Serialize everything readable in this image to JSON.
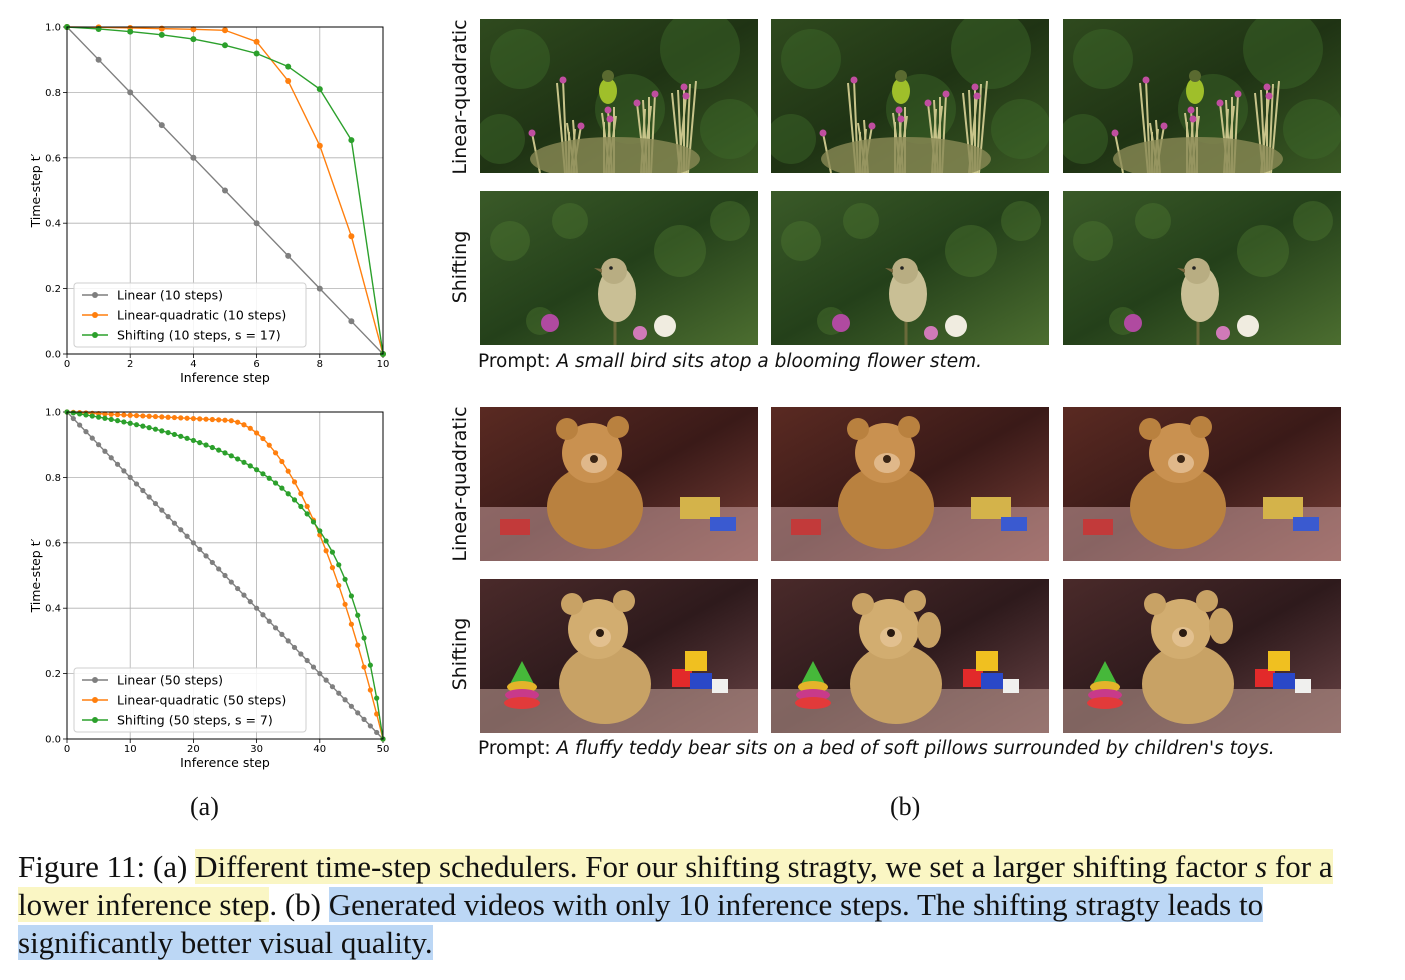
{
  "panel_a_label": "(a)",
  "panel_b_label": "(b)",
  "chart_data": [
    {
      "type": "line",
      "xlabel": "Inference step",
      "ylabel": "Time-step t′",
      "xlim": [
        0,
        10
      ],
      "ylim": [
        0,
        1
      ],
      "xticks": [
        "0",
        "2",
        "4",
        "6",
        "8",
        "10"
      ],
      "yticks": [
        "0.0",
        "0.2",
        "0.4",
        "0.6",
        "0.8",
        "1.0"
      ],
      "grid": true,
      "legend_position": "lower-left",
      "series": [
        {
          "name": "Linear (10 steps)",
          "color": "#7f7f7f",
          "x": [
            0,
            1,
            2,
            3,
            4,
            5,
            6,
            7,
            8,
            9,
            10
          ],
          "y": [
            1.0,
            0.9,
            0.8,
            0.7,
            0.6,
            0.5,
            0.4,
            0.3,
            0.2,
            0.1,
            0.0
          ]
        },
        {
          "name": "Linear-quadratic (10 steps)",
          "color": "#ff7f0e",
          "x": [
            0,
            1,
            2,
            3,
            4,
            5,
            6,
            7,
            8,
            9,
            10
          ],
          "y": [
            1.0,
            0.999,
            0.997,
            0.995,
            0.993,
            0.99,
            0.955,
            0.835,
            0.637,
            0.36,
            0.0
          ]
        },
        {
          "name": "Shifting (10 steps, s = 17)",
          "color": "#2ca02c",
          "x": [
            0,
            1,
            2,
            3,
            4,
            5,
            6,
            7,
            8,
            9,
            10
          ],
          "y": [
            1.0,
            0.994,
            0.986,
            0.976,
            0.963,
            0.944,
            0.919,
            0.879,
            0.81,
            0.654,
            0.0
          ]
        }
      ]
    },
    {
      "type": "line",
      "xlabel": "Inference step",
      "ylabel": "Time-step t′",
      "xlim": [
        0,
        50
      ],
      "ylim": [
        0,
        1
      ],
      "xticks": [
        "0",
        "10",
        "20",
        "30",
        "40",
        "50"
      ],
      "yticks": [
        "0.0",
        "0.2",
        "0.4",
        "0.6",
        "0.8",
        "1.0"
      ],
      "grid": true,
      "legend_position": "lower-left",
      "series": [
        {
          "name": "Linear (50 steps)",
          "color": "#7f7f7f",
          "steps": 50,
          "kind": "linear"
        },
        {
          "name": "Linear-quadratic (50 steps)",
          "color": "#ff7f0e",
          "steps": 50,
          "kind": "linquad",
          "knee_step": 25,
          "knee_value": 0.975
        },
        {
          "name": "Shifting (50 steps, s = 7)",
          "color": "#2ca02c",
          "steps": 50,
          "kind": "shift",
          "s": 7
        }
      ]
    }
  ],
  "rows": [
    {
      "label": "Linear-quadratic",
      "scene": "bird"
    },
    {
      "label": "Shifting",
      "scene": "bird"
    },
    {
      "label": "Linear-quadratic",
      "scene": "bear"
    },
    {
      "label": "Shifting",
      "scene": "bear"
    }
  ],
  "prompts": [
    {
      "prefix": "Prompt: ",
      "text": "A small bird sits atop a blooming flower stem."
    },
    {
      "prefix": "Prompt: ",
      "text": "A fluffy teddy bear sits on a bed of soft pillows surrounded by children's toys."
    }
  ],
  "caption": {
    "figure": "Figure 11: (a) ",
    "part_a": "Different time-step schedulers. For our shifting stragty, we set a larger shifting factor ",
    "s_symbol": "s",
    "part_a2": " for a lower inference step",
    "mid": ". (b) ",
    "part_b": "Generated videos with only 10 inference steps. The shifting stragty leads to significantly better visual quality."
  },
  "colors": {
    "linear": "#7f7f7f",
    "linquad": "#ff7f0e",
    "shift": "#2ca02c",
    "highlight_yellow": "#faf6c4",
    "highlight_blue": "#bcd7f5"
  }
}
